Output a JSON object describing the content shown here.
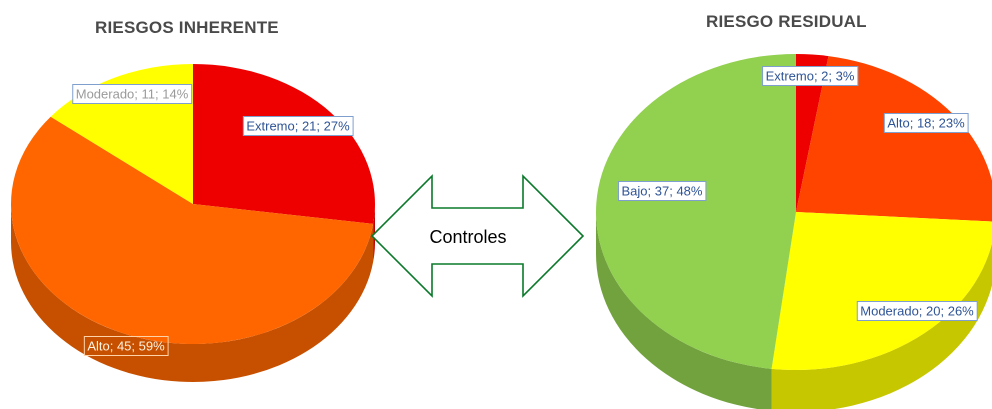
{
  "chart_data": [
    {
      "type": "pie",
      "title": "RIESGOS INHERENTE",
      "slices": [
        {
          "label": "Extremo",
          "value": 21,
          "percent": 27,
          "color": "#ee0000",
          "data_label": "Extremo; 21; 27%"
        },
        {
          "label": "Alto",
          "value": 45,
          "percent": 59,
          "color": "#ff6600",
          "data_label": "Alto; 45; 59%"
        },
        {
          "label": "Moderado",
          "value": 11,
          "percent": 14,
          "color": "#ffff00",
          "data_label": "Moderado; 11; 14%"
        }
      ]
    },
    {
      "type": "pie",
      "title": "RIESGO RESIDUAL",
      "slices": [
        {
          "label": "Extremo",
          "value": 2,
          "percent": 3,
          "color": "#ee0000",
          "data_label": "Extremo; 2; 3%"
        },
        {
          "label": "Alto",
          "value": 18,
          "percent": 23,
          "color": "#ff4400",
          "data_label": "Alto; 18; 23%"
        },
        {
          "label": "Moderado",
          "value": 20,
          "percent": 26,
          "color": "#ffff00",
          "data_label": "Moderado; 20; 26%"
        },
        {
          "label": "Bajo",
          "value": 37,
          "percent": 48,
          "color": "#92d050",
          "data_label": "Bajo; 37; 48%"
        }
      ]
    }
  ],
  "arrow": {
    "label": "Controles",
    "color": "#0a7a2a"
  }
}
